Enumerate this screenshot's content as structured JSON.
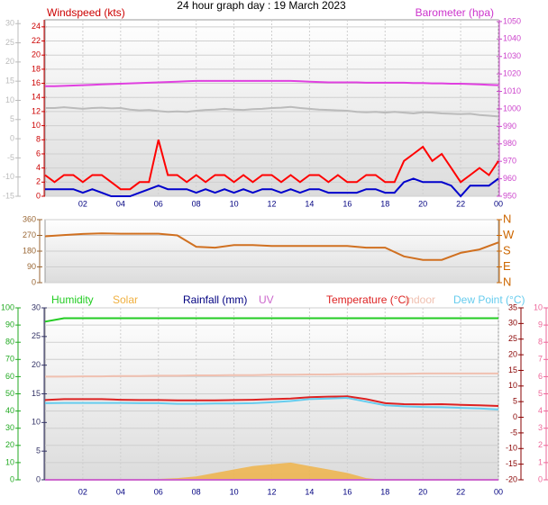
{
  "chart_data": [
    {
      "type": "line",
      "title": "24 hour graph day : 19 March 2023",
      "ylabel": "Windspeed (kts)",
      "y2label": "Barometer (hpa)",
      "x": [
        0,
        0.5,
        1,
        1.5,
        2,
        2.5,
        3,
        3.5,
        4,
        4.5,
        5,
        5.5,
        6,
        6.5,
        7,
        7.5,
        8,
        8.5,
        9,
        9.5,
        10,
        10.5,
        11,
        11.5,
        12,
        12.5,
        13,
        13.5,
        14,
        14.5,
        15,
        15.5,
        16,
        16.5,
        17,
        17.5,
        18,
        18.5,
        19,
        19.5,
        20,
        20.5,
        21,
        21.5,
        22,
        22.5,
        23,
        23.5,
        24
      ],
      "xlim": [
        0,
        24
      ],
      "xticks": [
        {
          "value": 2,
          "label": "02"
        },
        {
          "value": 4,
          "label": "04"
        },
        {
          "value": 6,
          "label": "06"
        },
        {
          "value": 8,
          "label": "08"
        },
        10,
        12,
        14,
        16,
        18,
        20,
        22,
        {
          "value": 24,
          "label": "00"
        }
      ],
      "ylim": [
        0,
        25
      ],
      "yticks": [
        0,
        2,
        4,
        6,
        8,
        10,
        12,
        14,
        16,
        18,
        20,
        22,
        24
      ],
      "y2lim": [
        950,
        1051
      ],
      "y2ticks": [
        950,
        960,
        970,
        980,
        990,
        1000,
        1010,
        1020,
        1030,
        1040,
        1050
      ],
      "y3lim": [
        -15,
        31
      ],
      "y3ticks": [
        -15,
        -10,
        -5,
        0,
        5,
        10,
        15,
        20,
        25,
        30
      ],
      "grid": true,
      "series": [
        {
          "color": "#bbbbbb",
          "axis": "y3",
          "values": [
            8,
            8,
            8.2,
            8,
            7.8,
            8,
            8.1,
            7.9,
            8,
            7.6,
            7.4,
            7.5,
            7.2,
            7,
            7.1,
            7,
            7.3,
            7.5,
            7.6,
            7.8,
            7.6,
            7.5,
            7.7,
            7.8,
            8,
            8.1,
            8.3,
            8,
            7.8,
            7.6,
            7.5,
            7.4,
            7.3,
            7,
            6.9,
            7,
            6.8,
            7,
            6.8,
            6.6,
            6.9,
            6.8,
            6.6,
            6.5,
            6.4,
            6.5,
            6.2,
            6,
            5.8
          ]
        },
        {
          "color": "#e040e0",
          "axis": "y2",
          "values": [
            1013,
            1013,
            1013.2,
            1013.4,
            1013.6,
            1013.8,
            1014,
            1014.2,
            1014.4,
            1014.6,
            1014.8,
            1015,
            1015.2,
            1015.4,
            1015.6,
            1015.8,
            1016,
            1016,
            1016,
            1016,
            1016,
            1016,
            1016,
            1016,
            1016,
            1016,
            1016,
            1015.8,
            1015.6,
            1015.4,
            1015.2,
            1015.2,
            1015.2,
            1015.2,
            1015,
            1015,
            1015,
            1015,
            1015,
            1014.8,
            1014.8,
            1014.6,
            1014.6,
            1014.4,
            1014.4,
            1014.2,
            1014,
            1013.8,
            1013.6
          ]
        },
        {
          "color": "#ff0000",
          "values": [
            3,
            2,
            3,
            3,
            2,
            3,
            3,
            2,
            1,
            1,
            2,
            2,
            8,
            3,
            3,
            2,
            3,
            2,
            3,
            3,
            2,
            3,
            2,
            3,
            3,
            2,
            3,
            2,
            3,
            3,
            2,
            3,
            2,
            2,
            3,
            3,
            2,
            2,
            5,
            6,
            7,
            5,
            6,
            4,
            2,
            3,
            4,
            3,
            5
          ]
        },
        {
          "color": "#0000cc",
          "values": [
            1,
            1,
            1,
            1,
            0.5,
            1,
            0.5,
            0,
            0,
            0,
            0.5,
            1,
            1.5,
            1,
            1,
            1,
            0.5,
            1,
            0.5,
            1,
            0.5,
            1,
            0.5,
            1,
            1,
            0.5,
            1,
            0.5,
            1,
            1,
            0.5,
            0.5,
            0.5,
            0.5,
            1,
            1,
            0.5,
            0.5,
            2,
            2.5,
            2,
            2,
            2,
            1.5,
            0,
            1.5,
            1.5,
            1.5,
            2.5
          ]
        }
      ]
    },
    {
      "type": "line",
      "x": [
        0,
        1,
        2,
        3,
        4,
        5,
        6,
        7,
        8,
        9,
        10,
        11,
        12,
        13,
        14,
        15,
        16,
        17,
        18,
        19,
        20,
        21,
        22,
        23,
        24
      ],
      "xlim": [
        0,
        24
      ],
      "ylim": [
        0,
        360
      ],
      "yticks": [
        0,
        90,
        180,
        270,
        360
      ],
      "y2lim": [
        0,
        360
      ],
      "y2ticks": [
        {
          "value": 0,
          "label": "N"
        },
        {
          "value": 90,
          "label": "E"
        },
        {
          "value": 180,
          "label": "S"
        },
        {
          "value": 270,
          "label": "W"
        },
        {
          "value": 360,
          "label": "N"
        }
      ],
      "grid": true,
      "series": [
        {
          "color": "#d07020",
          "values": [
            265,
            272,
            278,
            282,
            280,
            280,
            280,
            270,
            205,
            200,
            215,
            215,
            210,
            210,
            210,
            210,
            210,
            200,
            200,
            150,
            130,
            130,
            170,
            190,
            230
          ]
        }
      ]
    },
    {
      "type": "line",
      "x": [
        0,
        1,
        2,
        3,
        4,
        5,
        6,
        7,
        8,
        9,
        10,
        11,
        12,
        13,
        14,
        15,
        16,
        17,
        18,
        19,
        20,
        21,
        22,
        23,
        24
      ],
      "xlim": [
        0,
        24
      ],
      "xticks": [
        {
          "value": 2,
          "label": "02"
        },
        {
          "value": 4,
          "label": "04"
        },
        {
          "value": 6,
          "label": "06"
        },
        {
          "value": 8,
          "label": "08"
        },
        10,
        12,
        14,
        16,
        18,
        20,
        22,
        {
          "value": 24,
          "label": "00"
        }
      ],
      "ylim": [
        0,
        100
      ],
      "yticks": [
        0,
        10,
        20,
        30,
        40,
        50,
        60,
        70,
        80,
        90,
        100
      ],
      "y2lim": [
        -20,
        35
      ],
      "y2ticks": [
        -20,
        -15,
        -10,
        -5,
        0,
        5,
        10,
        15,
        20,
        25,
        30,
        35
      ],
      "y3lim": [
        0,
        30
      ],
      "y3ticks": [
        0,
        5,
        10,
        15,
        20,
        25,
        30
      ],
      "y4lim": [
        0,
        10
      ],
      "y4ticks": [
        0,
        1,
        2,
        3,
        4,
        5,
        6,
        7,
        8,
        9,
        10
      ],
      "grid": true,
      "series": [
        {
          "name": "Humidity",
          "color": "#22cc22",
          "values": [
            92,
            94,
            94,
            94,
            94,
            94,
            94,
            94,
            94,
            94,
            94,
            94,
            94,
            94,
            94,
            94,
            94,
            94,
            94,
            94,
            94,
            94,
            94,
            94,
            94
          ]
        },
        {
          "name": "Solar",
          "color": "#f0b040",
          "area": true,
          "values": [
            0,
            0,
            0,
            0,
            0,
            0,
            0.5,
            1,
            2,
            4,
            6,
            8,
            9,
            10,
            8,
            6,
            4,
            1,
            0,
            0,
            0,
            0,
            0,
            0,
            0
          ]
        },
        {
          "name": "Rainfall (mm)",
          "color": "#000080",
          "axis": "y3",
          "values": [
            0,
            0,
            0,
            0,
            0,
            0,
            0,
            0,
            0,
            0,
            0,
            0,
            0,
            0,
            0,
            0,
            0,
            0,
            0,
            0,
            0,
            0,
            0,
            0,
            0
          ]
        },
        {
          "name": "UV",
          "color": "#cc66cc",
          "axis": "y4",
          "values": [
            0,
            0,
            0,
            0,
            0,
            0,
            0,
            0,
            0,
            0,
            0,
            0,
            0,
            0,
            0,
            0,
            0,
            0,
            0,
            0,
            0,
            0,
            0,
            0,
            0
          ]
        },
        {
          "name": "Temperature (°C)",
          "color": "#dd2222",
          "axis": "y2",
          "values": [
            5.5,
            5.8,
            5.8,
            5.8,
            5.6,
            5.5,
            5.5,
            5.4,
            5.4,
            5.4,
            5.5,
            5.6,
            5.8,
            6,
            6.4,
            6.6,
            6.7,
            5.8,
            4.5,
            4.2,
            4.1,
            4.2,
            4,
            3.8,
            3.6
          ]
        },
        {
          "name": "Indoor",
          "color": "#f0c0b0",
          "axis": "y2",
          "values": [
            13,
            13,
            13.1,
            13.1,
            13.2,
            13.2,
            13.3,
            13.3,
            13.4,
            13.4,
            13.5,
            13.5,
            13.6,
            13.6,
            13.7,
            13.7,
            13.8,
            13.8,
            13.9,
            13.9,
            14,
            14,
            14,
            14,
            14
          ]
        },
        {
          "name": "Dew Point (°C)",
          "color": "#66ccee",
          "axis": "y2",
          "values": [
            4.5,
            4.6,
            4.6,
            4.6,
            4.6,
            4.5,
            4.5,
            4.3,
            4.3,
            4.4,
            4.4,
            4.5,
            4.8,
            5.2,
            5.8,
            6,
            6.2,
            5,
            3.8,
            3.5,
            3.3,
            3.2,
            3,
            2.8,
            2.5
          ]
        }
      ]
    }
  ]
}
